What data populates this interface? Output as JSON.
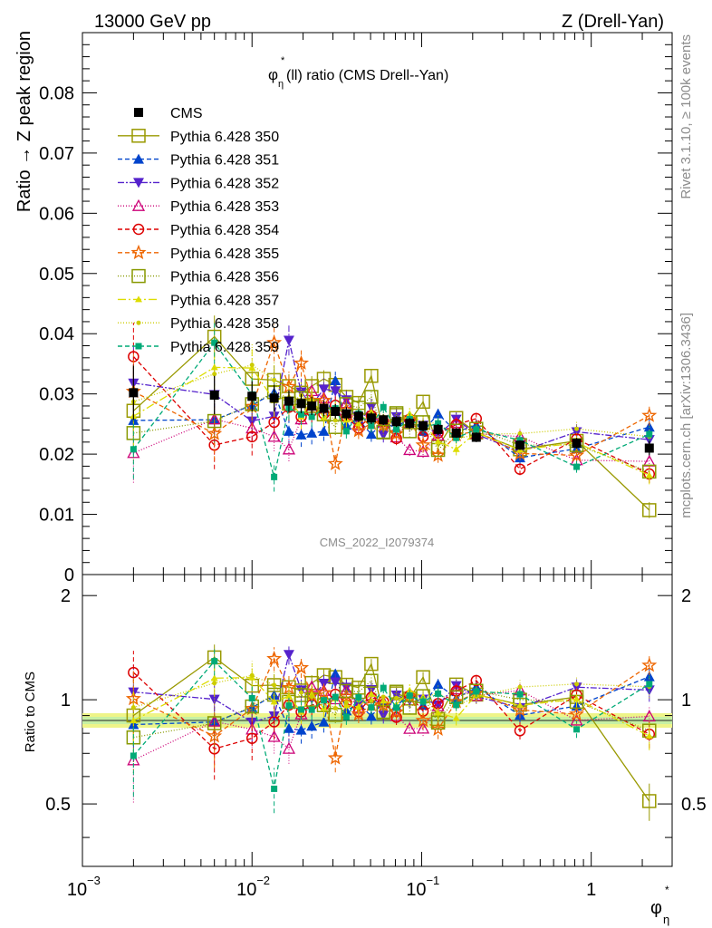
{
  "header": {
    "energy_label": "13000 GeV pp",
    "process_label": "Z (Drell-Yan)",
    "watermark_analysis": "CMS_2022_I2079374",
    "side_label_rivet": "Rivet 3.1.10, ≥ 100k events",
    "side_label_source": "mcplots.cern.ch [arXiv:1306.3436]"
  },
  "chart_data": {
    "type": "line",
    "title_main": "φ",
    "title_sup": "*",
    "title_sub": "η",
    "title_rest": "(ll) ratio (CMS Drell--Yan)",
    "ylabel": "Ratio → Z peak region",
    "ratio_ylabel": "Ratio to CMS",
    "xlabel_main": "φ",
    "xlabel_sup": "*",
    "xlabel_sub": "η",
    "x_scale": "log",
    "xlim": [
      0.001,
      3.0
    ],
    "ylim": [
      0,
      0.09
    ],
    "ratio_ylim": [
      0.33,
      2.3
    ],
    "x_ticks": [
      {
        "value": 0.001,
        "base": "10",
        "exp": "−3"
      },
      {
        "value": 0.01,
        "base": "10",
        "exp": "−2"
      },
      {
        "value": 0.1,
        "base": "10",
        "exp": "−1"
      },
      {
        "value": 1,
        "base": "1",
        "exp": ""
      }
    ],
    "y_ticks": [
      "0",
      "0.01",
      "0.02",
      "0.03",
      "0.04",
      "0.05",
      "0.06",
      "0.07",
      "0.08"
    ],
    "ratio_y_ticks": [
      "0.5",
      "1",
      "2"
    ],
    "x": [
      0.002,
      0.006,
      0.01,
      0.0135,
      0.0165,
      0.0195,
      0.0225,
      0.0265,
      0.031,
      0.036,
      0.0425,
      0.0505,
      0.0595,
      0.071,
      0.085,
      0.102,
      0.125,
      0.16,
      0.21,
      0.38,
      0.82,
      2.2
    ],
    "cms": {
      "name": "CMS",
      "values": [
        0.0302,
        0.0298,
        0.0296,
        0.0293,
        0.0288,
        0.0284,
        0.028,
        0.0276,
        0.0271,
        0.0267,
        0.0263,
        0.026,
        0.0257,
        0.0254,
        0.0251,
        0.0247,
        0.0241,
        0.0235,
        0.0228,
        0.0215,
        0.0218,
        0.021
      ],
      "errors": [
        0.0045,
        0.0032,
        0.0025,
        0.0022,
        0.0018,
        0.0016,
        0.0015,
        0.0013,
        0.0012,
        0.0011,
        0.001,
        0.001,
        0.0009,
        0.0009,
        0.0009,
        0.0009,
        0.0009,
        0.0008,
        0.0008,
        0.0008,
        0.0009,
        0.0012
      ]
    },
    "series": [
      {
        "name": "Pythia 6.428 350",
        "color": "#999900",
        "marker": "square-open",
        "dash": "",
        "values": [
          0.0272,
          0.0395,
          0.0325,
          0.0323,
          0.0313,
          0.0302,
          0.0313,
          0.0325,
          0.0315,
          0.0295,
          0.0285,
          0.033,
          0.0236,
          0.0265,
          0.0253,
          0.0287,
          0.0212,
          0.026,
          0.0236,
          0.0208,
          0.0222,
          0.0107
        ]
      },
      {
        "name": "Pythia 6.428 351",
        "color": "#0044cc",
        "marker": "triangle-up",
        "dash": "5,3",
        "values": [
          0.0256,
          0.0257,
          0.0281,
          0.0302,
          0.0238,
          0.0232,
          0.0235,
          0.0238,
          0.0322,
          0.0248,
          0.0257,
          0.0233,
          0.0253,
          0.0243,
          0.0262,
          0.0238,
          0.0267,
          0.0237,
          0.0248,
          0.0194,
          0.0209,
          0.0245
        ]
      },
      {
        "name": "Pythia 6.428 352",
        "color": "#5522cc",
        "marker": "triangle-down",
        "dash": "7,2,2,2",
        "values": [
          0.0318,
          0.0299,
          0.0255,
          0.0263,
          0.0389,
          0.0303,
          0.0282,
          0.0308,
          0.0305,
          0.029,
          0.0253,
          0.0278,
          0.0232,
          0.0262,
          0.025,
          0.0248,
          0.0233,
          0.0258,
          0.0233,
          0.0204,
          0.0237,
          0.0224
        ]
      },
      {
        "name": "Pythia 6.428 353",
        "color": "#cc0077",
        "marker": "triangle-open",
        "dash": "1,2",
        "values": [
          0.0202,
          0.0258,
          0.0243,
          0.0229,
          0.0208,
          0.0258,
          0.0305,
          0.0293,
          0.0272,
          0.0285,
          0.0248,
          0.0266,
          0.0253,
          0.0228,
          0.0207,
          0.0204,
          0.0231,
          0.0252,
          0.0234,
          0.0229,
          0.019,
          0.0188
        ]
      },
      {
        "name": "Pythia 6.428 354",
        "color": "#dd0000",
        "marker": "circle-open",
        "dash": "5,3",
        "values": [
          0.0362,
          0.0215,
          0.0229,
          0.0253,
          0.0278,
          0.0262,
          0.0271,
          0.0267,
          0.0281,
          0.0262,
          0.0243,
          0.0264,
          0.0254,
          0.0226,
          0.0258,
          0.0229,
          0.0235,
          0.0249,
          0.0259,
          0.0175,
          0.0225,
          0.0167
        ]
      },
      {
        "name": "Pythia 6.428 355",
        "color": "#ee6600",
        "marker": "star",
        "dash": "5,3",
        "values": [
          0.0304,
          0.0234,
          0.0279,
          0.0385,
          0.0312,
          0.0351,
          0.0289,
          0.0289,
          0.0184,
          0.0273,
          0.0239,
          0.0251,
          0.0248,
          0.0234,
          0.0257,
          0.0215,
          0.0198,
          0.0232,
          0.0238,
          0.0201,
          0.0198,
          0.0264
        ]
      },
      {
        "name": "Pythia 6.428 356",
        "color": "#889900",
        "marker": "square-open",
        "dash": "1,2",
        "values": [
          0.0235,
          0.0255,
          0.0283,
          0.0303,
          0.0284,
          0.0293,
          0.028,
          0.0266,
          0.0245,
          0.0283,
          0.0277,
          0.0295,
          0.0237,
          0.0268,
          0.0238,
          0.0253,
          0.0207,
          0.0239,
          0.0242,
          0.0215,
          0.0215,
          0.0171
        ]
      },
      {
        "name": "Pythia 6.428 357",
        "color": "#dddd00",
        "marker": "small-tri",
        "dash": "9,3,2,3",
        "values": [
          0.0263,
          0.0344,
          0.0343,
          0.0289,
          0.0295,
          0.0262,
          0.029,
          0.0261,
          0.0273,
          0.0257,
          0.0251,
          0.027,
          0.0255,
          0.0246,
          0.0267,
          0.0252,
          0.0221,
          0.0208,
          0.0236,
          0.0207,
          0.0219,
          0.0165
        ]
      },
      {
        "name": "Pythia 6.428 358",
        "color": "#cccc00",
        "marker": "dot",
        "dash": "1,2",
        "values": [
          0.0287,
          0.0333,
          0.0348,
          0.0323,
          0.0282,
          0.0298,
          0.0286,
          0.0273,
          0.0256,
          0.0262,
          0.0262,
          0.0258,
          0.0262,
          0.0257,
          0.0253,
          0.0249,
          0.0253,
          0.0225,
          0.0233,
          0.0234,
          0.0242,
          0.0229
        ]
      },
      {
        "name": "Pythia 6.428 359",
        "color": "#00aa77",
        "marker": "square-small",
        "dash": "5,3",
        "values": [
          0.0208,
          0.0385,
          0.0299,
          0.0162,
          0.0277,
          0.0266,
          0.0262,
          0.0275,
          0.0276,
          0.0238,
          0.0267,
          0.0247,
          0.0278,
          0.0241,
          0.0258,
          0.0244,
          0.0251,
          0.0227,
          0.0241,
          0.0223,
          0.0179,
          0.0233
        ]
      }
    ],
    "legend_position": "top-left"
  }
}
